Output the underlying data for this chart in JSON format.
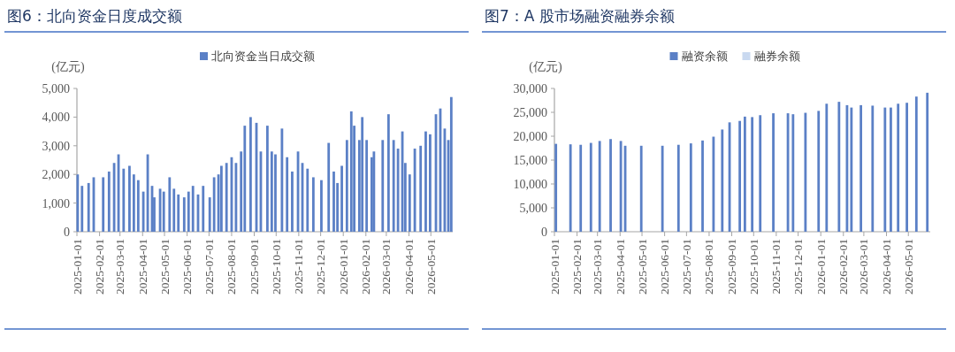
{
  "chart_data": [
    {
      "type": "bar",
      "title": "图6：北向资金日度成交额",
      "ylabel": "(亿元)",
      "legend": "top",
      "x": [
        "2025-01-02",
        "2025-01-08",
        "2025-01-17",
        "2025-01-24",
        "2025-02-06",
        "2025-02-14",
        "2025-02-21",
        "2025-02-27",
        "2025-03-06",
        "2025-03-14",
        "2025-03-20",
        "2025-03-26",
        "2025-04-02",
        "2025-04-08",
        "2025-04-14",
        "2025-04-17",
        "2025-04-25",
        "2025-04-30",
        "2025-05-08",
        "2025-05-14",
        "2025-05-20",
        "2025-05-28",
        "2025-06-03",
        "2025-06-09",
        "2025-06-16",
        "2025-06-23",
        "2025-07-02",
        "2025-07-08",
        "2025-07-14",
        "2025-07-18",
        "2025-07-25",
        "2025-08-01",
        "2025-08-07",
        "2025-08-14",
        "2025-08-19",
        "2025-08-27",
        "2025-09-04",
        "2025-09-10",
        "2025-09-19",
        "2025-09-25",
        "2025-09-30",
        "2025-10-09",
        "2025-10-16",
        "2025-10-23",
        "2025-10-31",
        "2025-11-06",
        "2025-11-13",
        "2025-11-21",
        "2025-12-02",
        "2025-12-12",
        "2025-12-19",
        "2025-12-24",
        "2025-12-30",
        "2026-01-06",
        "2026-01-12",
        "2026-01-16",
        "2026-01-23",
        "2026-01-27",
        "2026-02-02",
        "2026-02-09",
        "2026-02-12",
        "2026-02-24",
        "2026-03-04",
        "2026-03-11",
        "2026-03-17",
        "2026-03-23",
        "2026-03-27",
        "2026-04-02",
        "2026-04-09",
        "2026-04-17",
        "2026-04-24",
        "2026-04-30",
        "2026-05-08",
        "2026-05-14",
        "2026-05-20",
        "2026-05-25",
        "2026-05-29"
      ],
      "series": [
        {
          "name": "北向资金当日成交额",
          "color": "#5b80c6",
          "values": [
            2000,
            1600,
            1700,
            1900,
            1900,
            2100,
            2400,
            2700,
            2200,
            2300,
            2000,
            1800,
            1400,
            2700,
            1600,
            1200,
            1500,
            1400,
            1900,
            1500,
            1300,
            1200,
            1400,
            1600,
            1300,
            1600,
            1200,
            1900,
            2000,
            2300,
            2400,
            2600,
            2400,
            2800,
            3700,
            4000,
            3800,
            2800,
            3700,
            2800,
            2700,
            3600,
            2600,
            2100,
            2800,
            2400,
            2200,
            1900,
            1800,
            3100,
            2100,
            1700,
            2300,
            3200,
            4200,
            3700,
            3200,
            4000,
            3200,
            2600,
            2800,
            3200,
            4100,
            3200,
            2900,
            3500,
            2400,
            2000,
            2900,
            3000,
            3500,
            3400,
            4100,
            4300,
            3600,
            3200,
            4700
          ]
        }
      ],
      "xlim": [
        "2025-01-01",
        "2026-05-31"
      ],
      "xticks": [
        "2025-01-01",
        "2025-02-01",
        "2025-03-01",
        "2025-04-01",
        "2025-05-01",
        "2025-06-01",
        "2025-07-01",
        "2025-08-01",
        "2025-09-01",
        "2025-10-01",
        "2025-11-01",
        "2025-12-01",
        "2026-01-01",
        "2026-02-01",
        "2026-03-01",
        "2026-04-01",
        "2026-05-01"
      ],
      "ylim": [
        0,
        5000
      ],
      "yticks": [
        0,
        {
          "value": 1000,
          "label": "1,000"
        },
        {
          "value": 2000,
          "label": "2,000"
        },
        {
          "value": 3000,
          "label": "3,000"
        },
        {
          "value": 4000,
          "label": "4,000"
        },
        {
          "value": 5000,
          "label": "5,000"
        }
      ]
    },
    {
      "type": "bar",
      "title": "图7：A 股市场融资融券余额",
      "ylabel": "(亿元)",
      "legend": "top",
      "x": [
        "2025-01-03",
        "2025-01-23",
        "2025-02-06",
        "2025-02-20",
        "2025-03-04",
        "2025-03-19",
        "2025-04-02",
        "2025-04-08",
        "2025-04-30",
        "2025-05-29",
        "2025-06-20",
        "2025-07-07",
        "2025-07-23",
        "2025-08-07",
        "2025-08-19",
        "2025-08-29",
        "2025-09-12",
        "2025-09-19",
        "2025-09-29",
        "2025-10-10",
        "2025-10-28",
        "2025-11-17",
        "2025-11-24",
        "2025-12-11",
        "2025-12-29",
        "2026-01-09",
        "2026-01-26",
        "2026-02-06",
        "2026-02-12",
        "2026-02-25",
        "2026-03-13",
        "2026-03-30",
        "2026-04-07",
        "2026-04-17",
        "2026-04-29",
        "2026-05-12",
        "2026-05-27"
      ],
      "series": [
        {
          "name": "融资余额",
          "color": "#5b80c6",
          "values": [
            18400,
            18300,
            18200,
            18600,
            19000,
            19400,
            19000,
            18000,
            18000,
            18000,
            18200,
            18500,
            19100,
            19900,
            21400,
            22900,
            23200,
            24100,
            24000,
            24400,
            24800,
            24800,
            24600,
            24900,
            25300,
            26800,
            27200,
            26500,
            26000,
            26500,
            26400,
            26000,
            26000,
            26800,
            27000,
            28300,
            29100
          ]
        },
        {
          "name": "融券余额",
          "color": "#c9d9f0",
          "values": [
            null,
            null,
            null,
            null,
            null,
            null,
            null,
            null,
            null,
            null,
            null,
            null,
            null,
            null,
            null,
            null,
            null,
            null,
            null,
            null,
            null,
            null,
            null,
            null,
            null,
            null,
            null,
            null,
            null,
            null,
            null,
            null,
            null,
            null,
            null,
            null,
            null
          ]
        }
      ],
      "xlim": [
        "2025-01-01",
        "2026-05-31"
      ],
      "xticks": [
        "2025-01-01",
        "2025-02-01",
        "2025-03-01",
        "2025-04-01",
        "2025-05-01",
        "2025-06-01",
        "2025-07-01",
        "2025-08-01",
        "2025-09-01",
        "2025-10-01",
        "2025-11-01",
        "2025-12-01",
        "2026-01-01",
        "2026-02-01",
        "2026-03-01",
        "2026-04-01",
        "2026-05-01"
      ],
      "ylim": [
        0,
        30000
      ],
      "yticks": [
        0,
        {
          "value": 5000,
          "label": "5,000"
        },
        {
          "value": 10000,
          "label": "10,000"
        },
        {
          "value": 15000,
          "label": "15,000"
        },
        {
          "value": 20000,
          "label": "20,000"
        },
        {
          "value": 25000,
          "label": "25,000"
        },
        {
          "value": 30000,
          "label": "30,000"
        }
      ]
    }
  ]
}
